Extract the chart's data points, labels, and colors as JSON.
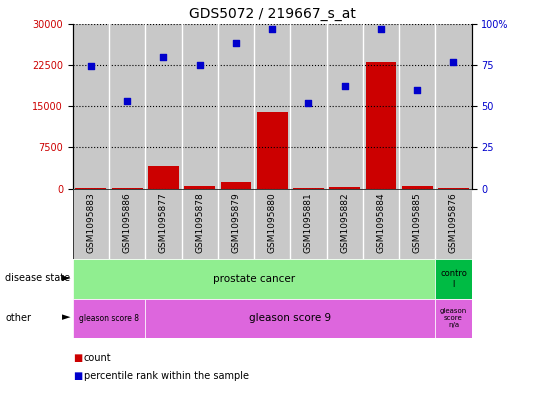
{
  "title": "GDS5072 / 219667_s_at",
  "samples": [
    "GSM1095883",
    "GSM1095886",
    "GSM1095877",
    "GSM1095878",
    "GSM1095879",
    "GSM1095880",
    "GSM1095881",
    "GSM1095882",
    "GSM1095884",
    "GSM1095885",
    "GSM1095876"
  ],
  "count_values": [
    50,
    100,
    4200,
    400,
    1200,
    14000,
    200,
    300,
    23000,
    400,
    100
  ],
  "percentile_values": [
    74,
    53,
    80,
    75,
    88,
    97,
    52,
    62,
    97,
    60,
    77
  ],
  "count_color": "#cc0000",
  "percentile_color": "#0000cc",
  "ylim_left": [
    0,
    30000
  ],
  "ylim_right": [
    0,
    100
  ],
  "yticks_left": [
    0,
    7500,
    15000,
    22500,
    30000
  ],
  "yticks_right": [
    0,
    25,
    50,
    75,
    100
  ],
  "bg_color": "#d3d3d3",
  "disease_state_pc_color": "#90EE90",
  "disease_state_ctrl_color": "#00bb44",
  "other_g8_color": "#dd66dd",
  "other_g9_color": "#dd66dd",
  "other_na_color": "#dd66dd",
  "legend_items": [
    {
      "label": "count",
      "color": "#cc0000"
    },
    {
      "label": "percentile rank within the sample",
      "color": "#0000cc"
    }
  ],
  "tick_fontsize": 7,
  "title_fontsize": 10
}
